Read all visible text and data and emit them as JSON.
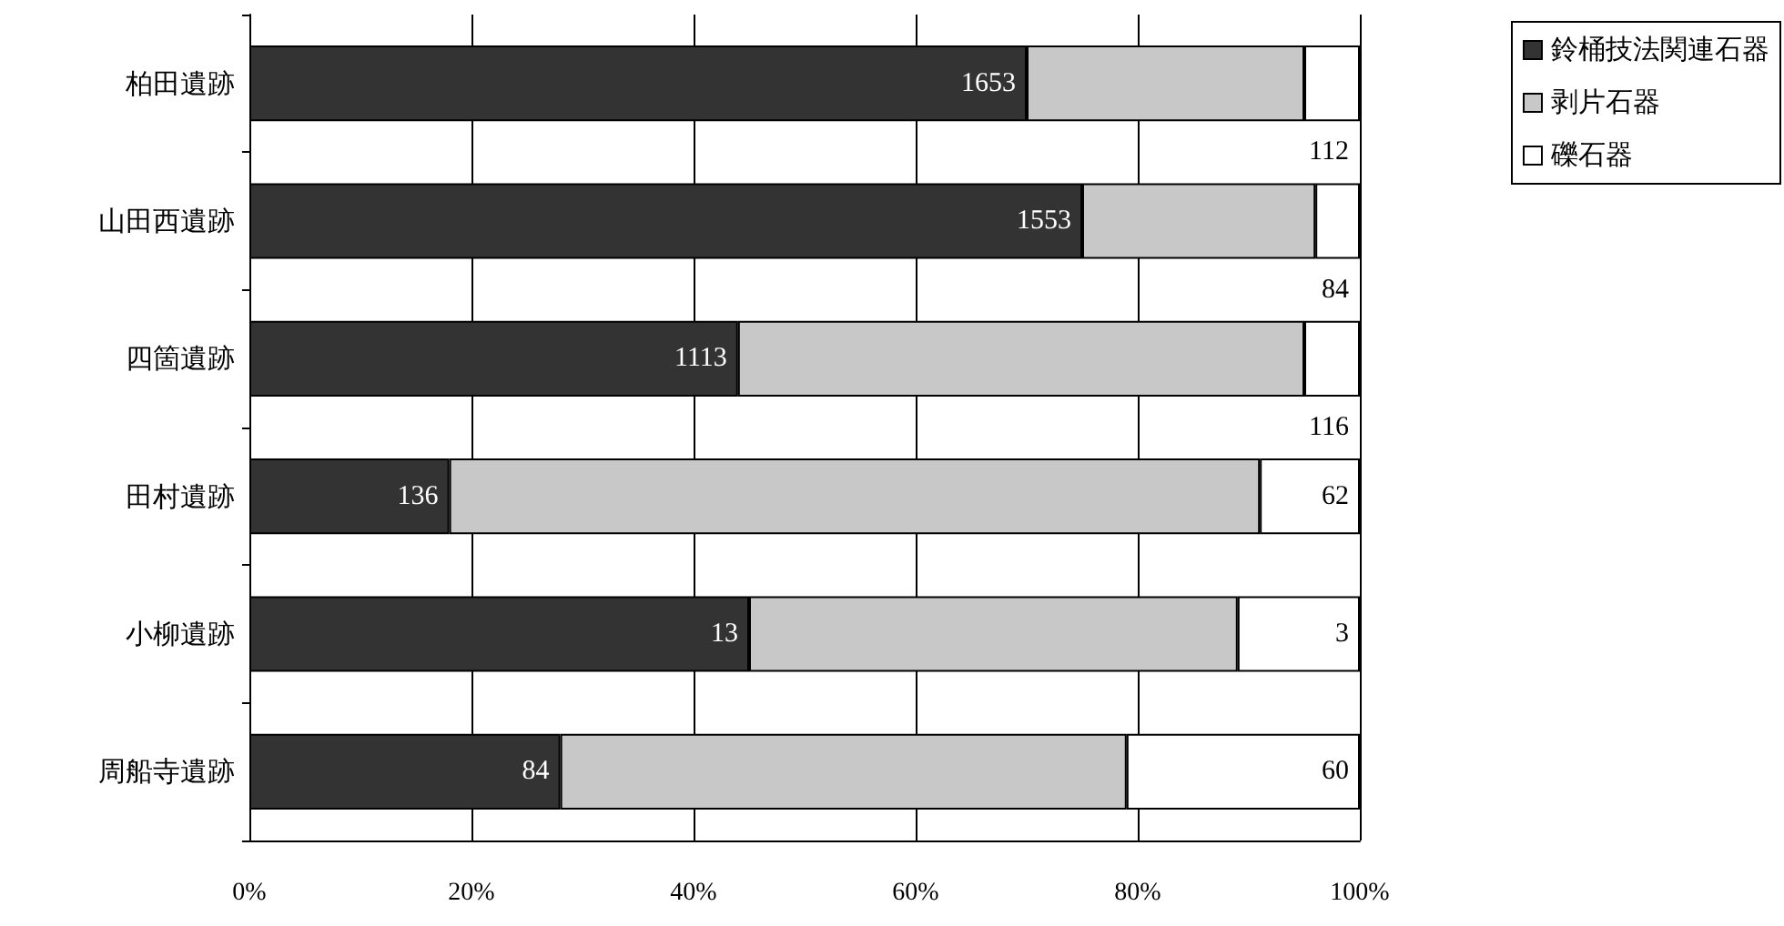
{
  "chart_data": {
    "type": "bar",
    "orientation": "horizontal",
    "stacked": true,
    "categories": [
      "柏田遺跡",
      "山田西遺跡",
      "四箇遺跡",
      "田村遺跡",
      "小柳遺跡",
      "周船寺遺跡"
    ],
    "series": [
      {
        "name": "鈴桶技法関連石器",
        "color": "#333333",
        "values": [
          70,
          75,
          44,
          18,
          45,
          28
        ]
      },
      {
        "name": "剥片石器",
        "color": "#c8c8c8",
        "values": [
          25,
          21,
          51,
          73,
          44,
          51
        ]
      },
      {
        "name": "礫石器",
        "color": "#ffffff",
        "values": [
          5,
          4,
          5,
          9,
          11,
          21
        ]
      }
    ],
    "annotations": [
      {
        "text": "1653",
        "x": 70,
        "y": "柏田遺跡"
      },
      {
        "text": "112",
        "x": 100,
        "y": "柏田遺跡"
      },
      {
        "text": "1553",
        "x": 75,
        "y": "山田西遺跡"
      },
      {
        "text": "84",
        "x": 100,
        "y": "山田西遺跡"
      },
      {
        "text": "1113",
        "x": 44,
        "y": "四箇遺跡"
      },
      {
        "text": "116",
        "x": 100,
        "y": "四箇遺跡"
      },
      {
        "text": "136",
        "x": 18,
        "y": "田村遺跡"
      },
      {
        "text": "62",
        "x": 100,
        "y": "田村遺跡"
      },
      {
        "text": "13",
        "x": 45,
        "y": "小柳遺跡"
      },
      {
        "text": "3",
        "x": 100,
        "y": "小柳遺跡"
      },
      {
        "text": "84",
        "x": 28,
        "y": "周船寺遺跡"
      },
      {
        "text": "60",
        "x": 100,
        "y": "周船寺遺跡"
      }
    ],
    "xlim": [
      0,
      100
    ],
    "xticks": [
      {
        "value": 0,
        "label": "0%"
      },
      {
        "value": 20,
        "label": "20%"
      },
      {
        "value": 40,
        "label": "40%"
      },
      {
        "value": 60,
        "label": "60%"
      },
      {
        "value": 80,
        "label": "80%"
      },
      {
        "value": 100,
        "label": "100%"
      }
    ],
    "grid": "x",
    "legend": "right"
  }
}
